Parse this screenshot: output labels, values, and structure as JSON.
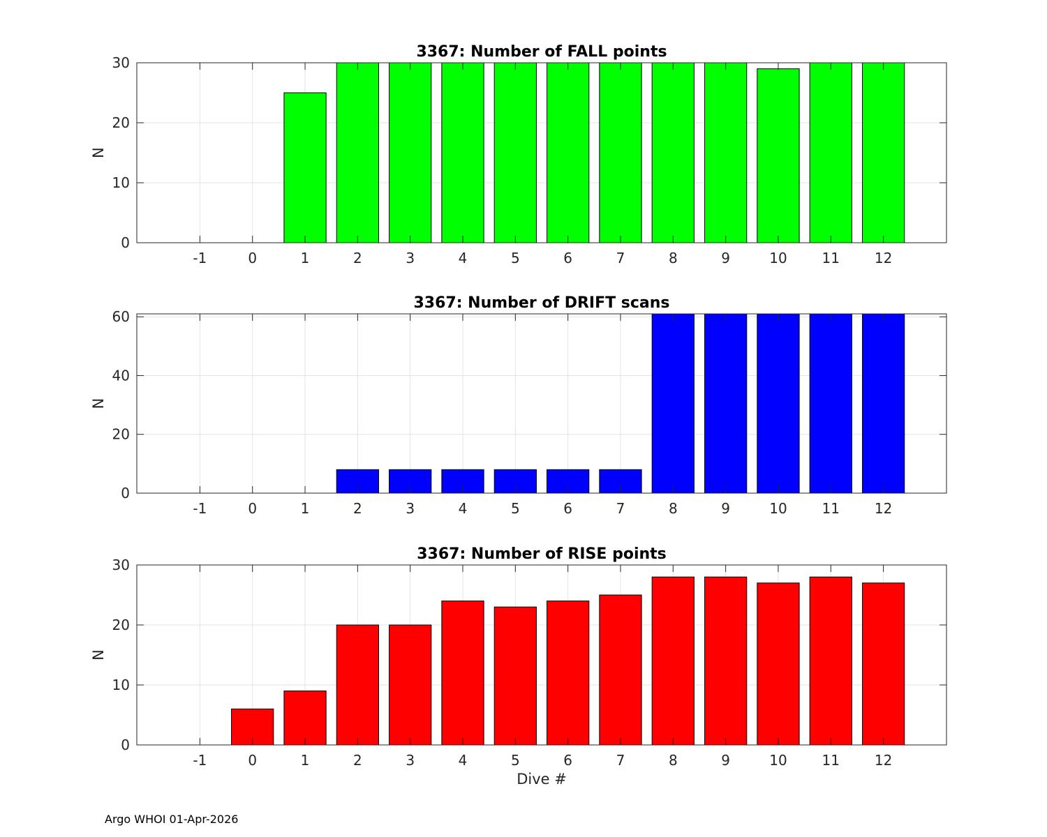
{
  "chart_data": [
    {
      "type": "bar",
      "title": "3367: Number of FALL points",
      "xlabel": "",
      "ylabel": "N",
      "color": "#00ff00",
      "categories": [
        "-1",
        "0",
        "1",
        "2",
        "3",
        "4",
        "5",
        "6",
        "7",
        "8",
        "9",
        "10",
        "11",
        "12"
      ],
      "values": [
        0,
        0,
        25,
        30,
        30,
        30,
        30,
        30,
        30,
        30,
        30,
        29,
        30,
        30
      ],
      "ylim": [
        0,
        30
      ],
      "yticks": [
        0,
        10,
        20,
        30
      ],
      "grid": true
    },
    {
      "type": "bar",
      "title": "3367: Number of DRIFT scans",
      "xlabel": "",
      "ylabel": "N",
      "color": "#0000ff",
      "categories": [
        "-1",
        "0",
        "1",
        "2",
        "3",
        "4",
        "5",
        "6",
        "7",
        "8",
        "9",
        "10",
        "11",
        "12"
      ],
      "values": [
        0,
        0,
        0,
        8,
        8,
        8,
        8,
        8,
        8,
        61,
        61,
        61,
        61,
        61
      ],
      "ylim": [
        0,
        61
      ],
      "yticks": [
        0,
        20,
        40,
        60
      ],
      "grid": true
    },
    {
      "type": "bar",
      "title": "3367: Number of RISE points",
      "xlabel": "Dive #",
      "ylabel": "N",
      "color": "#ff0000",
      "categories": [
        "-1",
        "0",
        "1",
        "2",
        "3",
        "4",
        "5",
        "6",
        "7",
        "8",
        "9",
        "10",
        "11",
        "12"
      ],
      "values": [
        0,
        6,
        9,
        20,
        20,
        24,
        23,
        24,
        25,
        28,
        28,
        27,
        28,
        27
      ],
      "ylim": [
        0,
        30
      ],
      "yticks": [
        0,
        10,
        20,
        30
      ],
      "grid": true
    }
  ],
  "footer": {
    "text": "Argo WHOI 01-Apr-2026"
  }
}
